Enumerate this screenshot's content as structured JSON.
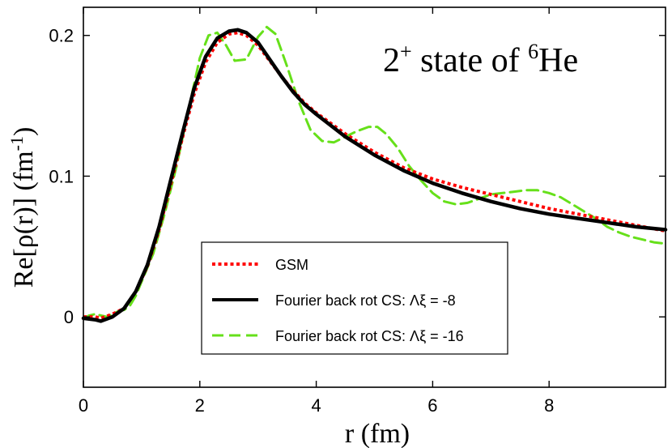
{
  "chart_data": {
    "type": "line",
    "title": "",
    "annotation": {
      "main": "2",
      "sup1": "+",
      "middle": " state of ",
      "sup2": "6",
      "end": "He"
    },
    "xlabel": "r (fm)",
    "ylabel": {
      "main": "Re[ρ(r)]  (fm",
      "sup": "-1",
      "end": ")"
    },
    "xlim": [
      0,
      10
    ],
    "ylim": [
      -0.05,
      0.22
    ],
    "x_ticks": [
      0,
      2,
      4,
      6,
      8
    ],
    "x_tick_labels": [
      "0",
      "2",
      "4",
      "6",
      "8"
    ],
    "y_ticks": [
      0,
      0.1,
      0.2
    ],
    "y_tick_labels": [
      "0",
      "0.1",
      "0.2"
    ],
    "grid": false,
    "legend_position": "bottom-center",
    "series": [
      {
        "name": "GSM",
        "color": "#ff0000",
        "style": "dotted",
        "x": [
          0,
          0.2,
          0.3,
          0.5,
          0.7,
          0.9,
          1.1,
          1.3,
          1.5,
          1.7,
          1.9,
          2.1,
          2.3,
          2.5,
          2.65,
          2.8,
          3.0,
          3.2,
          3.4,
          3.6,
          3.8,
          4.0,
          4.5,
          5.0,
          5.5,
          6.0,
          6.5,
          7.0,
          7.5,
          8.0,
          8.5,
          9.0,
          9.5,
          10.0
        ],
        "y": [
          0.0,
          0.0,
          -0.001,
          0.002,
          0.006,
          0.018,
          0.036,
          0.062,
          0.094,
          0.127,
          0.158,
          0.181,
          0.195,
          0.201,
          0.202,
          0.2,
          0.193,
          0.182,
          0.171,
          0.161,
          0.152,
          0.145,
          0.13,
          0.117,
          0.106,
          0.098,
          0.092,
          0.087,
          0.082,
          0.077,
          0.073,
          0.069,
          0.065,
          0.061
        ]
      },
      {
        "name": "Fourier back rot CS: Λξ = -8",
        "color": "#000000",
        "style": "solid",
        "x": [
          0,
          0.2,
          0.3,
          0.5,
          0.7,
          0.9,
          1.1,
          1.3,
          1.5,
          1.7,
          1.9,
          2.1,
          2.3,
          2.5,
          2.65,
          2.8,
          3.0,
          3.2,
          3.4,
          3.6,
          3.8,
          4.0,
          4.5,
          5.0,
          5.5,
          6.0,
          6.5,
          7.0,
          7.5,
          8.0,
          8.5,
          9.0,
          9.5,
          10.0
        ],
        "y": [
          -0.001,
          -0.002,
          -0.003,
          0.0,
          0.006,
          0.018,
          0.037,
          0.064,
          0.097,
          0.13,
          0.162,
          0.185,
          0.198,
          0.203,
          0.204,
          0.202,
          0.195,
          0.183,
          0.171,
          0.16,
          0.151,
          0.144,
          0.128,
          0.115,
          0.104,
          0.095,
          0.088,
          0.082,
          0.077,
          0.073,
          0.07,
          0.067,
          0.064,
          0.062
        ]
      },
      {
        "name": "Fourier back rot CS: Λξ = -16",
        "color": "#66e01a",
        "style": "dashed",
        "x": [
          0,
          0.1,
          0.2,
          0.3,
          0.4,
          0.5,
          0.6,
          0.7,
          0.8,
          0.9,
          1.0,
          1.2,
          1.4,
          1.6,
          1.8,
          2.0,
          2.15,
          2.3,
          2.45,
          2.6,
          2.8,
          3.0,
          3.15,
          3.3,
          3.5,
          3.7,
          3.9,
          4.1,
          4.3,
          4.5,
          4.7,
          4.9,
          5.05,
          5.2,
          5.4,
          5.6,
          5.8,
          6.0,
          6.2,
          6.4,
          6.6,
          6.8,
          7.0,
          7.2,
          7.4,
          7.6,
          7.8,
          8.0,
          8.2,
          8.4,
          8.6,
          8.8,
          9.0,
          9.2,
          9.4,
          9.6,
          9.8,
          10.0
        ],
        "y": [
          -0.001,
          0.001,
          0.002,
          0.001,
          0.0,
          0.002,
          0.004,
          0.005,
          0.008,
          0.015,
          0.025,
          0.045,
          0.074,
          0.107,
          0.146,
          0.184,
          0.2,
          0.202,
          0.193,
          0.182,
          0.183,
          0.199,
          0.206,
          0.201,
          0.178,
          0.153,
          0.133,
          0.125,
          0.124,
          0.128,
          0.132,
          0.135,
          0.135,
          0.13,
          0.12,
          0.107,
          0.097,
          0.088,
          0.082,
          0.08,
          0.081,
          0.084,
          0.087,
          0.088,
          0.089,
          0.09,
          0.09,
          0.088,
          0.085,
          0.08,
          0.075,
          0.07,
          0.064,
          0.06,
          0.057,
          0.055,
          0.053,
          0.052
        ]
      }
    ]
  }
}
